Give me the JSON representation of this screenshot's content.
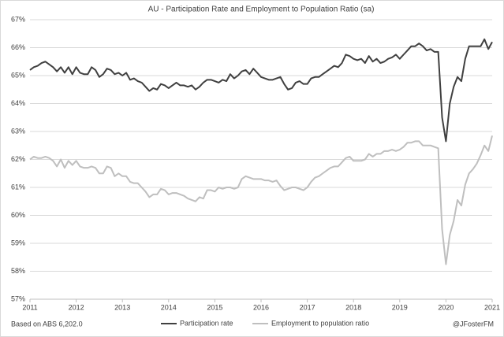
{
  "chart_data": {
    "type": "line",
    "title": "AU - Participation Rate and Employment to Population Ratio (sa)",
    "source": "Based on ABS 6,202.0",
    "credit": "@JFosterFM",
    "x": [
      2011,
      2011.083,
      2011.167,
      2011.25,
      2011.333,
      2011.417,
      2011.5,
      2011.583,
      2011.667,
      2011.75,
      2011.833,
      2011.917,
      2012,
      2012.083,
      2012.167,
      2012.25,
      2012.333,
      2012.417,
      2012.5,
      2012.583,
      2012.667,
      2012.75,
      2012.833,
      2012.917,
      2013,
      2013.083,
      2013.167,
      2013.25,
      2013.333,
      2013.417,
      2013.5,
      2013.583,
      2013.667,
      2013.75,
      2013.833,
      2013.917,
      2014,
      2014.083,
      2014.167,
      2014.25,
      2014.333,
      2014.417,
      2014.5,
      2014.583,
      2014.667,
      2014.75,
      2014.833,
      2014.917,
      2015,
      2015.083,
      2015.167,
      2015.25,
      2015.333,
      2015.417,
      2015.5,
      2015.583,
      2015.667,
      2015.75,
      2015.833,
      2015.917,
      2016,
      2016.083,
      2016.167,
      2016.25,
      2016.333,
      2016.417,
      2016.5,
      2016.583,
      2016.667,
      2016.75,
      2016.833,
      2016.917,
      2017,
      2017.083,
      2017.167,
      2017.25,
      2017.333,
      2017.417,
      2017.5,
      2017.583,
      2017.667,
      2017.75,
      2017.833,
      2017.917,
      2018,
      2018.083,
      2018.167,
      2018.25,
      2018.333,
      2018.417,
      2018.5,
      2018.583,
      2018.667,
      2018.75,
      2018.833,
      2018.917,
      2019,
      2019.083,
      2019.167,
      2019.25,
      2019.333,
      2019.417,
      2019.5,
      2019.583,
      2019.667,
      2019.75,
      2019.833,
      2019.917,
      2020,
      2020.083,
      2020.167,
      2020.25,
      2020.333,
      2020.417,
      2020.5,
      2020.583,
      2020.667,
      2020.75,
      2020.833,
      2020.917,
      2021
    ],
    "series": [
      {
        "name": "Participation rate",
        "color": "#404040",
        "values": [
          65.2,
          65.3,
          65.35,
          65.45,
          65.5,
          65.4,
          65.3,
          65.15,
          65.3,
          65.1,
          65.3,
          65.05,
          65.3,
          65.1,
          65.05,
          65.05,
          65.3,
          65.2,
          64.95,
          65.05,
          65.25,
          65.2,
          65.05,
          65.1,
          65.0,
          65.1,
          64.85,
          64.9,
          64.8,
          64.75,
          64.6,
          64.45,
          64.55,
          64.5,
          64.7,
          64.65,
          64.55,
          64.65,
          64.75,
          64.65,
          64.65,
          64.6,
          64.65,
          64.5,
          64.6,
          64.75,
          64.85,
          64.85,
          64.8,
          64.75,
          64.85,
          64.8,
          65.05,
          64.9,
          65.0,
          65.15,
          65.2,
          65.05,
          65.25,
          65.1,
          64.95,
          64.9,
          64.85,
          64.85,
          64.9,
          64.95,
          64.7,
          64.5,
          64.55,
          64.75,
          64.8,
          64.7,
          64.7,
          64.9,
          64.95,
          64.95,
          65.05,
          65.15,
          65.25,
          65.35,
          65.3,
          65.45,
          65.75,
          65.7,
          65.6,
          65.55,
          65.6,
          65.45,
          65.7,
          65.5,
          65.6,
          65.45,
          65.5,
          65.6,
          65.65,
          65.75,
          65.6,
          65.75,
          65.9,
          66.05,
          66.05,
          66.15,
          66.05,
          65.9,
          65.95,
          65.85,
          65.85,
          63.5,
          62.65,
          64.0,
          64.6,
          64.95,
          64.8,
          65.6,
          66.05,
          66.05,
          66.05,
          66.05,
          66.3,
          65.95,
          66.2
        ]
      },
      {
        "name": "Employment to population ratio",
        "color": "#bfbfbf",
        "values": [
          62.0,
          62.1,
          62.05,
          62.05,
          62.1,
          62.05,
          61.95,
          61.75,
          62.0,
          61.7,
          61.95,
          61.8,
          61.95,
          61.75,
          61.7,
          61.7,
          61.75,
          61.7,
          61.5,
          61.5,
          61.75,
          61.7,
          61.4,
          61.5,
          61.4,
          61.4,
          61.2,
          61.15,
          61.15,
          61.0,
          60.85,
          60.65,
          60.75,
          60.75,
          60.95,
          60.9,
          60.75,
          60.8,
          60.8,
          60.75,
          60.7,
          60.6,
          60.55,
          60.5,
          60.65,
          60.6,
          60.9,
          60.9,
          60.85,
          61.0,
          60.95,
          61.0,
          61.0,
          60.95,
          61.0,
          61.3,
          61.4,
          61.35,
          61.3,
          61.3,
          61.3,
          61.25,
          61.25,
          61.2,
          61.25,
          61.05,
          60.9,
          60.95,
          61.0,
          61.0,
          60.95,
          60.9,
          61.0,
          61.2,
          61.35,
          61.4,
          61.5,
          61.6,
          61.7,
          61.75,
          61.75,
          61.9,
          62.05,
          62.1,
          61.95,
          61.95,
          61.95,
          62.0,
          62.2,
          62.1,
          62.2,
          62.2,
          62.3,
          62.3,
          62.35,
          62.3,
          62.35,
          62.45,
          62.6,
          62.6,
          62.65,
          62.65,
          62.5,
          62.5,
          62.5,
          62.45,
          62.4,
          59.5,
          58.25,
          59.3,
          59.8,
          60.55,
          60.35,
          61.1,
          61.5,
          61.65,
          61.85,
          62.15,
          62.5,
          62.3,
          62.85
        ]
      }
    ],
    "xlim": [
      2011,
      2021
    ],
    "xticks": [
      2011,
      2012,
      2013,
      2014,
      2015,
      2016,
      2017,
      2018,
      2019,
      2020,
      2021
    ],
    "ylim": [
      57,
      67
    ],
    "yticks": [
      {
        "value": 57,
        "label": "57%"
      },
      {
        "value": 58,
        "label": "58%"
      },
      {
        "value": 59,
        "label": "59%"
      },
      {
        "value": 60,
        "label": "60%"
      },
      {
        "value": 61,
        "label": "61%"
      },
      {
        "value": 62,
        "label": "62%"
      },
      {
        "value": 63,
        "label": "63%"
      },
      {
        "value": 64,
        "label": "64%"
      },
      {
        "value": 65,
        "label": "65%"
      },
      {
        "value": 66,
        "label": "66%"
      },
      {
        "value": 67,
        "label": "67%"
      }
    ],
    "grid": true,
    "legend": "bottom"
  }
}
